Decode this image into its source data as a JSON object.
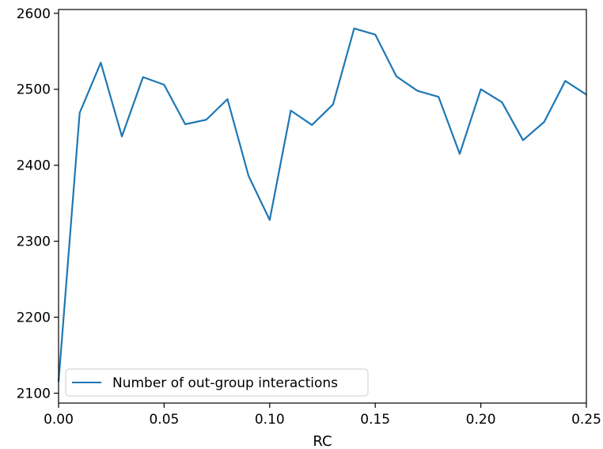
{
  "chart_data": {
    "type": "line",
    "xlabel": "RC",
    "ylabel": "",
    "xlim": [
      0.0,
      0.25
    ],
    "ylim": [
      2087,
      2605
    ],
    "grid": false,
    "legend_position": "lower-left",
    "x_ticks": [
      "0.00",
      "0.05",
      "0.10",
      "0.15",
      "0.20",
      "0.25"
    ],
    "y_ticks": [
      "2100",
      "2200",
      "2300",
      "2400",
      "2500",
      "2600"
    ],
    "series": [
      {
        "name": "Number of out-group interactions",
        "color": "#1f77b4",
        "x": [
          0.0,
          0.01,
          0.02,
          0.03,
          0.04,
          0.05,
          0.06,
          0.07,
          0.08,
          0.09,
          0.1,
          0.11,
          0.12,
          0.13,
          0.14,
          0.15,
          0.16,
          0.17,
          0.18,
          0.19,
          0.2,
          0.21,
          0.22,
          0.23,
          0.24,
          0.25
        ],
        "y": [
          2115,
          2469,
          2535,
          2438,
          2516,
          2506,
          2454,
          2460,
          2487,
          2386,
          2328,
          2472,
          2453,
          2480,
          2580,
          2572,
          2517,
          2498,
          2490,
          2415,
          2500,
          2483,
          2433,
          2457,
          2511,
          2493
        ]
      }
    ]
  }
}
